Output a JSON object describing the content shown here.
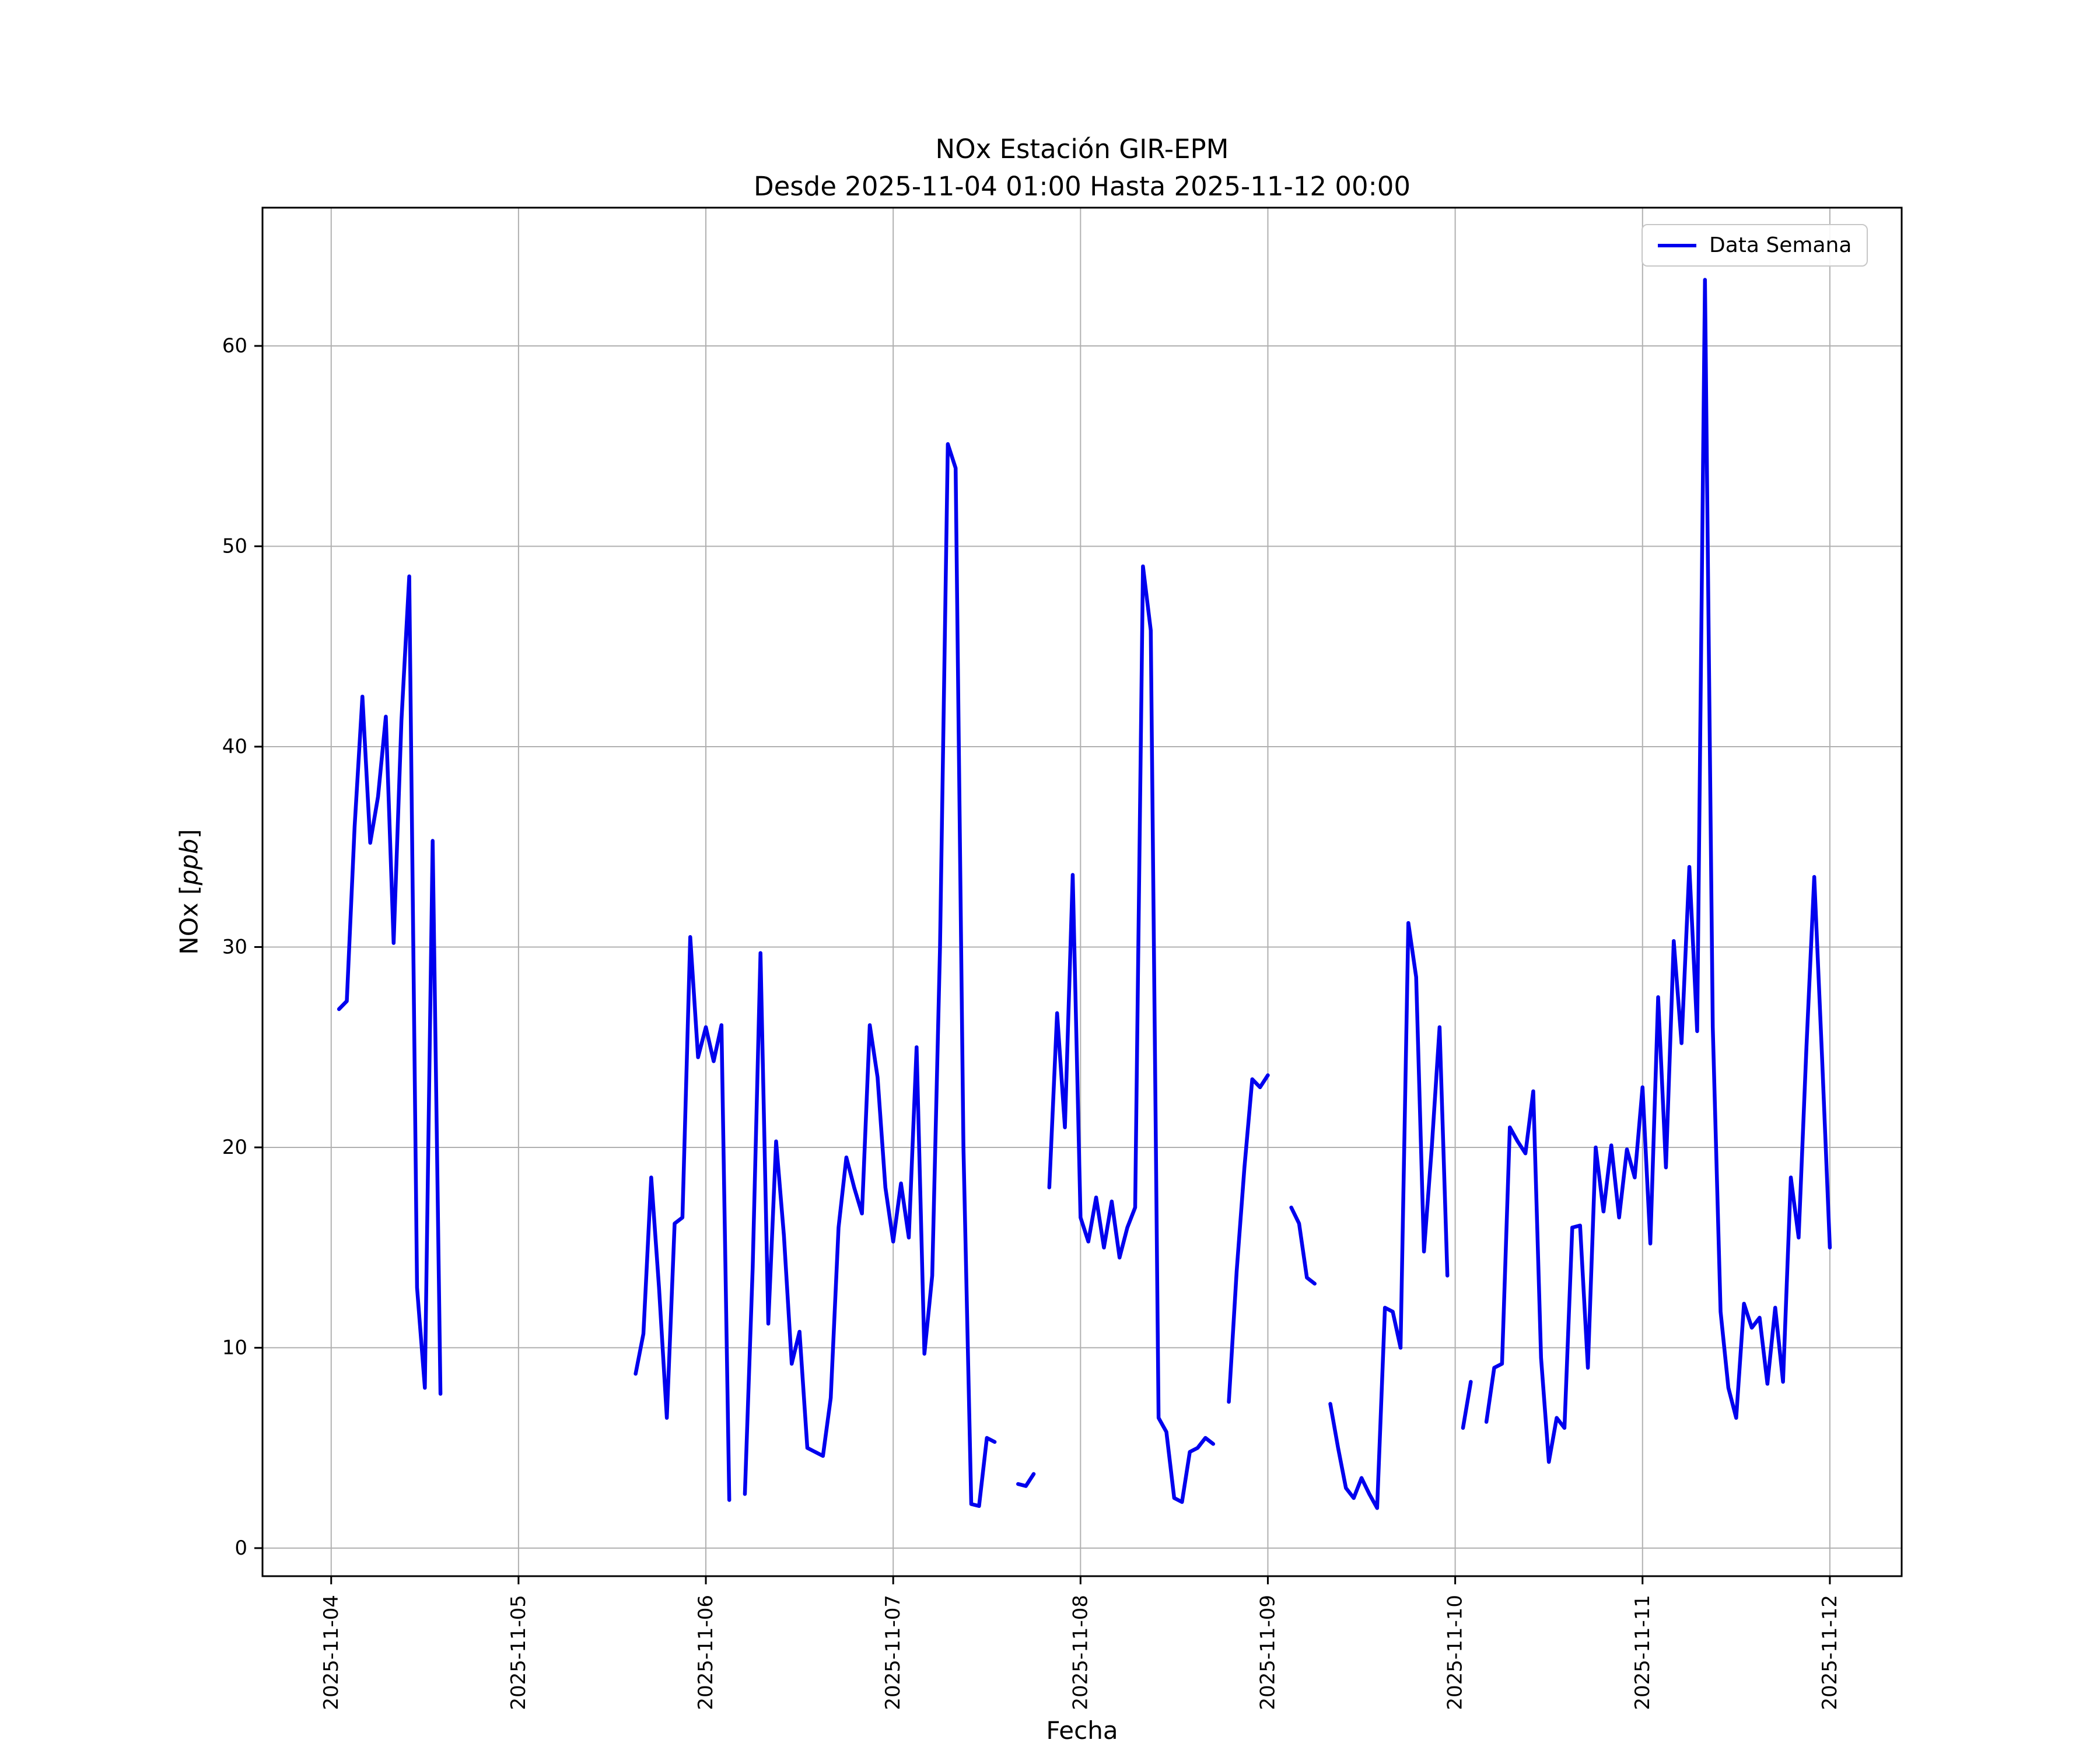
{
  "chart_data": {
    "type": "line",
    "title": "NOx Estación GIR-EPM",
    "subtitle": "Desde 2025-11-04 01:00 Hasta 2025-11-12 00:00",
    "xlabel": "Fecha",
    "ylabel": "NOx [ppb]",
    "ylabel_parts": {
      "prefix": "NOx [",
      "unit": "ppb",
      "suffix": "]"
    },
    "legend_position": "upper right",
    "grid": true,
    "line_color": "#0000ee",
    "grid_color": "#b0b0b0",
    "y_ticks": [
      0,
      10,
      20,
      30,
      40,
      50,
      60
    ],
    "y_range": [
      -1.4,
      66.9
    ],
    "x_tick_labels": [
      "2025-11-04",
      "2025-11-05",
      "2025-11-06",
      "2025-11-07",
      "2025-11-08",
      "2025-11-09",
      "2025-11-10",
      "2025-11-11",
      "2025-11-12"
    ],
    "x_tick_hours": [
      0,
      24,
      48,
      72,
      96,
      120,
      144,
      168,
      192
    ],
    "x_range_hours": [
      -8.8,
      201.2
    ],
    "series": [
      {
        "name": "Data Semana",
        "start": "2025-11-04 01:00",
        "end": "2025-11-12 00:00",
        "interval_hours": 1,
        "first_point_hour_offset": 1,
        "values": [
          26.9,
          27.3,
          36.0,
          42.5,
          35.2,
          37.5,
          41.5,
          30.2,
          41.3,
          48.5,
          13.0,
          8.0,
          35.3,
          7.7,
          null,
          null,
          null,
          null,
          null,
          null,
          null,
          null,
          null,
          null,
          null,
          null,
          null,
          null,
          null,
          null,
          null,
          null,
          null,
          null,
          null,
          null,
          null,
          null,
          8.7,
          10.7,
          18.5,
          13.0,
          6.5,
          16.2,
          16.5,
          30.5,
          24.5,
          26.0,
          24.3,
          26.1,
          2.4,
          null,
          2.7,
          14.0,
          29.7,
          11.2,
          20.3,
          15.6,
          9.2,
          10.8,
          5.0,
          4.8,
          4.6,
          7.5,
          16.0,
          19.5,
          18.0,
          16.7,
          26.1,
          23.5,
          18.0,
          15.3,
          18.2,
          15.5,
          25.0,
          9.7,
          13.6,
          30.0,
          55.1,
          53.9,
          20.0,
          2.2,
          2.1,
          5.5,
          5.3,
          null,
          null,
          3.2,
          3.1,
          3.7,
          null,
          18.0,
          26.7,
          21.0,
          33.6,
          16.5,
          15.3,
          17.5,
          15.0,
          17.3,
          14.5,
          16.0,
          17.0,
          49.0,
          45.8,
          6.5,
          5.8,
          2.5,
          2.3,
          4.8,
          5.0,
          5.5,
          5.2,
          null,
          7.3,
          13.8,
          19.0,
          23.4,
          23.0,
          23.6,
          null,
          null,
          17.0,
          16.2,
          13.5,
          13.2,
          null,
          7.2,
          5.0,
          3.0,
          2.5,
          3.5,
          2.7,
          2.0,
          12.0,
          11.8,
          10.0,
          31.2,
          28.5,
          14.8,
          20.0,
          26.0,
          13.6,
          null,
          6.0,
          8.3,
          null,
          6.3,
          9.0,
          9.2,
          21.0,
          20.3,
          19.7,
          22.8,
          9.5,
          4.3,
          6.5,
          6.0,
          16.0,
          16.1,
          9.0,
          20.0,
          16.8,
          20.1,
          16.5,
          19.9,
          18.5,
          23.0,
          15.2,
          27.5,
          19.0,
          30.3,
          25.2,
          34.0,
          25.8,
          63.3,
          26.0,
          11.8,
          8.0,
          6.5,
          12.2,
          11.0,
          11.5,
          8.2,
          12.0,
          8.3,
          18.5,
          15.5,
          25.0,
          33.5,
          24.5,
          15.0
        ]
      }
    ]
  }
}
